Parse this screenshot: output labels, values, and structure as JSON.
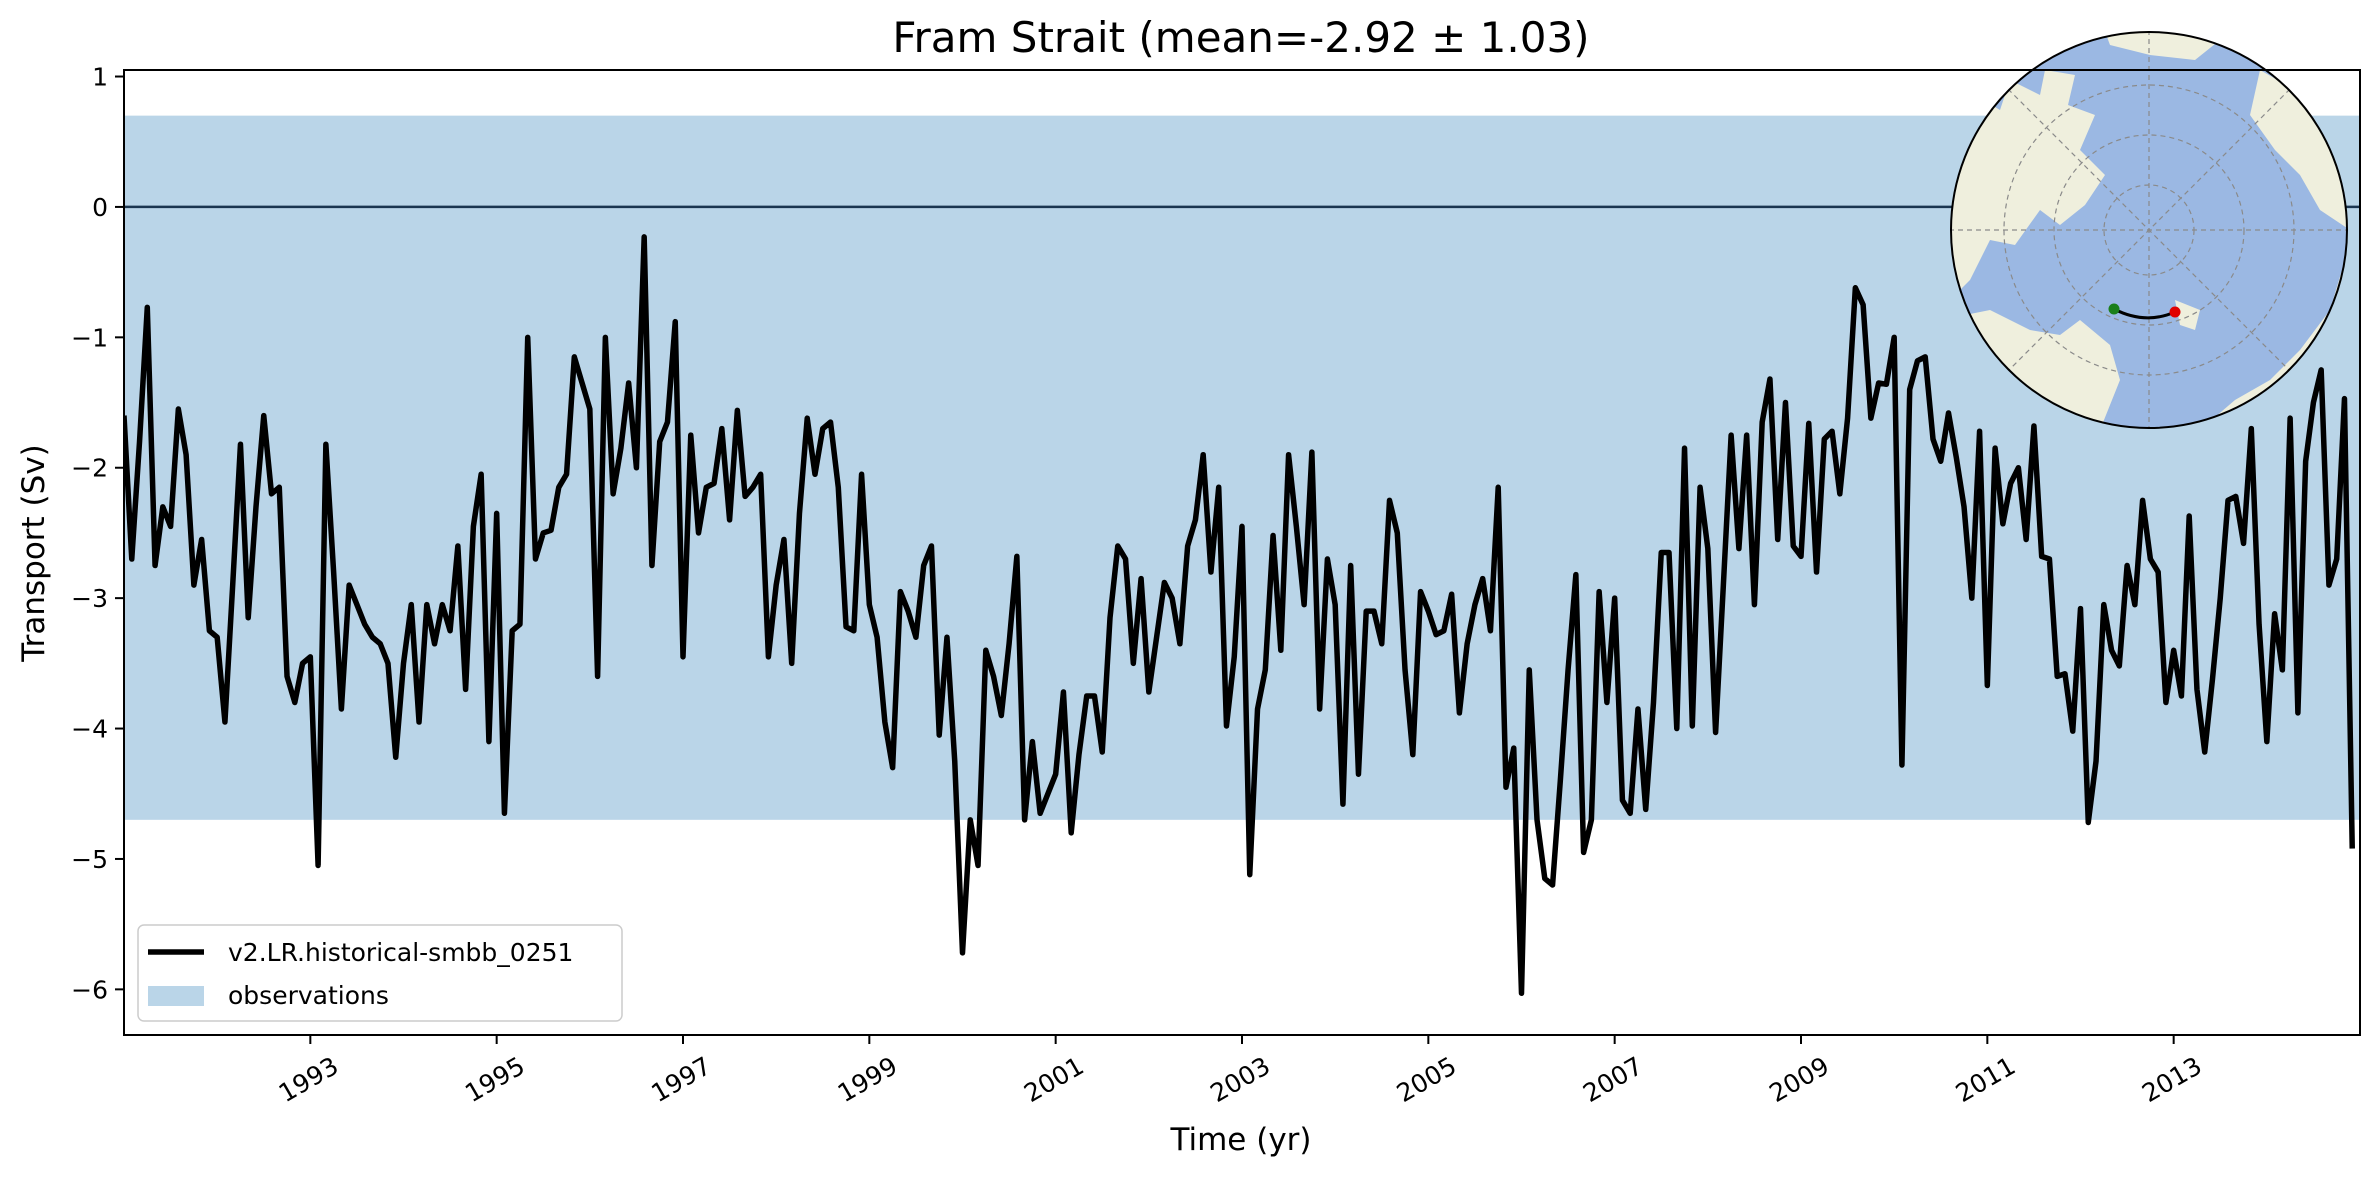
{
  "chart_data": {
    "type": "line",
    "title": "Fram Strait (mean=-2.92 ± 1.03)",
    "xlabel": "Time (yr)",
    "ylabel": "Transport (Sv)",
    "xlim": [
      1991.0,
      2015.0
    ],
    "ylim": [
      -6.35,
      1.05
    ],
    "x_ticks": [
      1993,
      1995,
      1997,
      1999,
      2001,
      2003,
      2005,
      2007,
      2009,
      2011,
      2013
    ],
    "x_tick_labels": [
      "1993",
      "1995",
      "1997",
      "1999",
      "2001",
      "2003",
      "2005",
      "2007",
      "2009",
      "2011",
      "2013"
    ],
    "y_ticks": [
      1,
      0,
      -1,
      -2,
      -3,
      -4,
      -5,
      -6
    ],
    "y_tick_labels": [
      "1",
      "0",
      "−1",
      "−2",
      "−3",
      "−4",
      "−5",
      "−6"
    ],
    "reference_line": 0,
    "legend_position": "lower-left",
    "inset": "north polar map with transect (top-right)",
    "colors": {
      "line": "#000000",
      "band": "#bad5e8",
      "map_ocean": "#9bb8e3",
      "map_land": "#efefdd",
      "start_marker": "#1a7f1a",
      "end_marker": "#e00000"
    },
    "series": [
      {
        "name": "v2.LR.historical-smbb_0251",
        "start_year": 1991.0,
        "step_months": 1,
        "values": [
          -1.6,
          -2.7,
          -1.8,
          -0.77,
          -2.75,
          -2.3,
          -2.45,
          -1.55,
          -1.9,
          -2.9,
          -2.55,
          -3.25,
          -3.3,
          -3.95,
          -2.9,
          -1.82,
          -3.15,
          -2.3,
          -1.6,
          -2.2,
          -2.15,
          -3.6,
          -3.8,
          -3.5,
          -3.45,
          -5.05,
          -1.82,
          -2.8,
          -3.85,
          -2.9,
          -3.05,
          -3.2,
          -3.3,
          -3.35,
          -3.5,
          -4.22,
          -3.5,
          -3.05,
          -3.95,
          -3.05,
          -3.35,
          -3.05,
          -3.25,
          -2.6,
          -3.7,
          -2.45,
          -2.05,
          -4.1,
          -2.35,
          -4.65,
          -3.25,
          -3.2,
          -1.0,
          -2.7,
          -2.5,
          -2.48,
          -2.15,
          -2.05,
          -1.15,
          -1.35,
          -1.55,
          -3.6,
          -1.0,
          -2.2,
          -1.85,
          -1.35,
          -2.0,
          -0.23,
          -2.75,
          -1.8,
          -1.65,
          -0.88,
          -3.45,
          -1.75,
          -2.5,
          -2.15,
          -2.12,
          -1.7,
          -2.4,
          -1.56,
          -2.22,
          -2.15,
          -2.05,
          -3.45,
          -2.9,
          -2.55,
          -3.5,
          -2.35,
          -1.62,
          -2.05,
          -1.7,
          -1.65,
          -2.15,
          -3.22,
          -3.25,
          -2.05,
          -3.05,
          -3.3,
          -3.95,
          -4.3,
          -2.95,
          -3.1,
          -3.3,
          -2.75,
          -2.6,
          -4.05,
          -3.3,
          -4.25,
          -5.72,
          -4.7,
          -5.05,
          -3.4,
          -3.6,
          -3.9,
          -3.35,
          -2.68,
          -4.7,
          -4.1,
          -4.65,
          -4.5,
          -4.35,
          -3.72,
          -4.8,
          -4.2,
          -3.75,
          -3.75,
          -4.18,
          -3.15,
          -2.6,
          -2.7,
          -3.5,
          -2.85,
          -3.72,
          -3.3,
          -2.88,
          -3.0,
          -3.35,
          -2.6,
          -2.4,
          -1.9,
          -2.8,
          -2.15,
          -3.98,
          -3.45,
          -2.45,
          -5.12,
          -3.85,
          -3.55,
          -2.52,
          -3.4,
          -1.9,
          -2.45,
          -3.05,
          -1.88,
          -3.85,
          -2.7,
          -3.05,
          -4.58,
          -2.75,
          -4.35,
          -3.1,
          -3.1,
          -3.35,
          -2.25,
          -2.5,
          -3.55,
          -4.2,
          -2.95,
          -3.1,
          -3.28,
          -3.25,
          -2.97,
          -3.88,
          -3.35,
          -3.05,
          -2.85,
          -3.25,
          -2.15,
          -4.45,
          -4.15,
          -6.03,
          -3.55,
          -4.7,
          -5.15,
          -5.2,
          -4.4,
          -3.55,
          -2.82,
          -4.95,
          -4.7,
          -2.95,
          -3.8,
          -3.0,
          -4.55,
          -4.65,
          -3.85,
          -4.62,
          -3.8,
          -2.65,
          -2.65,
          -4.0,
          -1.85,
          -3.98,
          -2.15,
          -2.62,
          -4.03,
          -2.9,
          -1.75,
          -2.62,
          -1.75,
          -3.05,
          -1.65,
          -1.32,
          -2.55,
          -1.5,
          -2.6,
          -2.68,
          -1.66,
          -2.8,
          -1.78,
          -1.72,
          -2.2,
          -1.62,
          -0.62,
          -0.75,
          -1.62,
          -1.35,
          -1.36,
          -1.0,
          -4.28,
          -1.4,
          -1.18,
          -1.15,
          -1.78,
          -1.95,
          -1.58,
          -1.92,
          -2.3,
          -3.0,
          -1.72,
          -3.67,
          -1.85,
          -2.43,
          -2.12,
          -2.0,
          -2.55,
          -1.68,
          -2.68,
          -2.7,
          -3.6,
          -3.58,
          -4.02,
          -3.08,
          -4.72,
          -4.25,
          -3.05,
          -3.4,
          -3.52,
          -2.75,
          -3.05,
          -2.25,
          -2.7,
          -2.8,
          -3.8,
          -3.4,
          -3.75,
          -2.37,
          -3.7,
          -4.18,
          -3.62,
          -3.0,
          -2.25,
          -2.22,
          -2.58,
          -1.7,
          -3.2,
          -4.1,
          -3.12,
          -3.55,
          -1.62,
          -3.88,
          -1.95,
          -1.5,
          -1.25,
          -2.9,
          -2.7,
          -1.47,
          -4.92
        ]
      },
      {
        "name": "observations",
        "band": [
          -4.7,
          0.7
        ]
      }
    ]
  },
  "legend": {
    "items": [
      {
        "label": "v2.LR.historical-smbb_0251"
      },
      {
        "label": "observations"
      }
    ]
  }
}
